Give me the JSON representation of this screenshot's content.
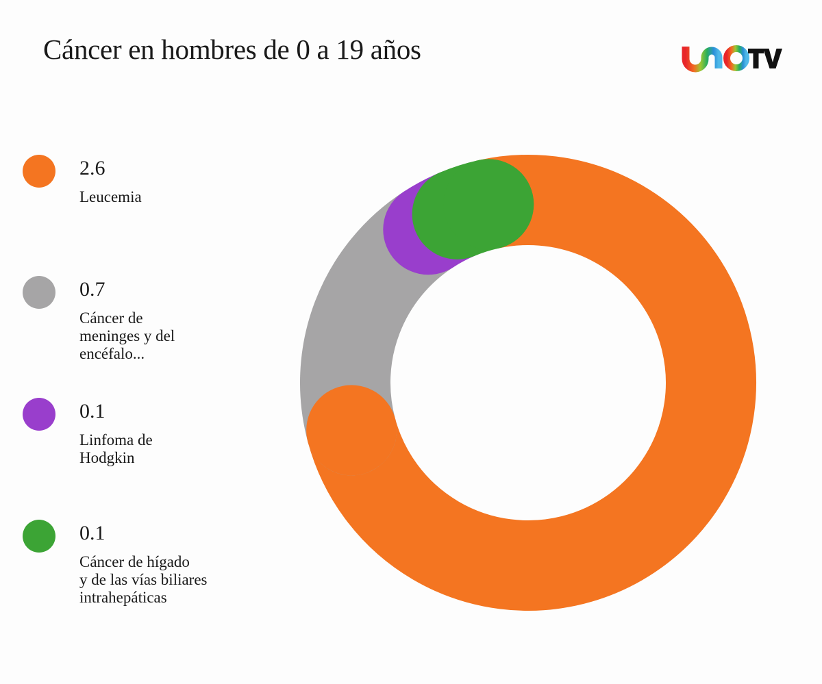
{
  "header": {
    "title": "Cáncer en hombres de 0 a 19 años",
    "logo": {
      "text_mark": "UNO",
      "tv": "TV",
      "icon": "unotv-logo-icon"
    }
  },
  "legend": [
    {
      "value": "2.6",
      "label": "Leucemia",
      "color": "#f47521"
    },
    {
      "value": "0.7",
      "label": "Cáncer de\nmeninges y del\nencéfalo...",
      "color": "#a6a5a6"
    },
    {
      "value": "0.1",
      "label": "Linfoma de\nHodgkin",
      "color": "#993ecc"
    },
    {
      "value": "0.1",
      "label": "Cáncer de hígado\ny de las vías biliares\nintrahepáticas",
      "color": "#3ca435"
    }
  ],
  "chart_data": {
    "type": "pie",
    "subtype": "donut",
    "title": "Cáncer en hombres de 0 a 19 años",
    "categories": [
      "Leucemia",
      "Cáncer de meninges y del encéfalo...",
      "Linfoma de Hodgkin",
      "Cáncer de hígado y de las vías biliares intrahepáticas"
    ],
    "values": [
      2.6,
      0.7,
      0.1,
      0.1
    ],
    "colors": [
      "#f47521",
      "#a6a5a6",
      "#993ecc",
      "#3ca435"
    ],
    "legend_position": "left",
    "xlabel": "",
    "ylabel": ""
  }
}
